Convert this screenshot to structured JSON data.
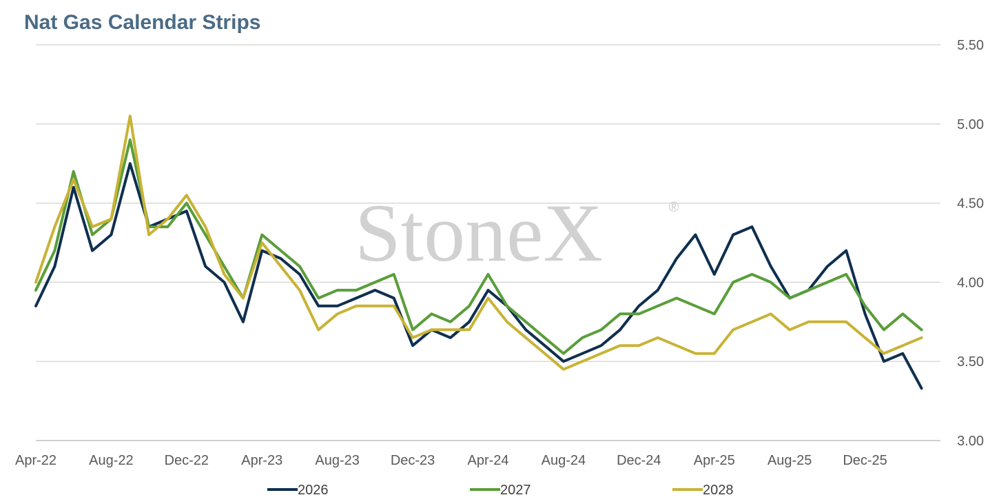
{
  "title": "Nat Gas Calendar Strips",
  "watermark": {
    "text": "StoneX",
    "mark": "®"
  },
  "colors": {
    "2026": "#0f2f4f",
    "2027": "#5a9e3a",
    "2028": "#c8b336",
    "grid": "#d9d9d9",
    "axis": "#bfbfbf"
  },
  "chart_data": {
    "type": "line",
    "title": "Nat Gas Calendar Strips",
    "xlabel": "",
    "ylabel": "",
    "ylim": [
      3.0,
      5.5
    ],
    "y_ticks": [
      "3.00",
      "3.50",
      "4.00",
      "4.50",
      "5.00",
      "5.50"
    ],
    "y_axis_side": "right",
    "grid": true,
    "legend": "bottom",
    "x_range": [
      "2022-04",
      "2026-04"
    ],
    "x_ticks": [
      "Apr-22",
      "Aug-22",
      "Dec-22",
      "Apr-23",
      "Aug-23",
      "Dec-23",
      "Apr-24",
      "Aug-24",
      "Dec-24",
      "Apr-25",
      "Aug-25",
      "Dec-25"
    ],
    "x": [
      "2022-04",
      "2022-05",
      "2022-06",
      "2022-07",
      "2022-08",
      "2022-09",
      "2022-10",
      "2022-11",
      "2022-12",
      "2023-01",
      "2023-02",
      "2023-03",
      "2023-04",
      "2023-05",
      "2023-06",
      "2023-07",
      "2023-08",
      "2023-09",
      "2023-10",
      "2023-11",
      "2023-12",
      "2024-01",
      "2024-02",
      "2024-03",
      "2024-04",
      "2024-05",
      "2024-06",
      "2024-07",
      "2024-08",
      "2024-09",
      "2024-10",
      "2024-11",
      "2024-12",
      "2025-01",
      "2025-02",
      "2025-03",
      "2025-04",
      "2025-05",
      "2025-06",
      "2025-07",
      "2025-08",
      "2025-09",
      "2025-10",
      "2025-11",
      "2025-12",
      "2026-01",
      "2026-02",
      "2026-03"
    ],
    "series": [
      {
        "name": "2026",
        "values": [
          3.85,
          4.1,
          4.6,
          4.2,
          4.3,
          4.75,
          4.35,
          4.4,
          4.45,
          4.1,
          4.0,
          3.75,
          4.2,
          4.15,
          4.05,
          3.85,
          3.85,
          3.9,
          3.95,
          3.9,
          3.6,
          3.7,
          3.65,
          3.75,
          3.95,
          3.85,
          3.7,
          3.6,
          3.5,
          3.55,
          3.6,
          3.7,
          3.85,
          3.95,
          4.15,
          4.3,
          4.05,
          4.3,
          4.35,
          4.1,
          3.9,
          3.95,
          4.1,
          4.2,
          3.8,
          3.5,
          3.55,
          3.33
        ]
      },
      {
        "name": "2027",
        "values": [
          3.95,
          4.2,
          4.7,
          4.3,
          4.4,
          4.9,
          4.35,
          4.35,
          4.5,
          4.3,
          4.1,
          3.9,
          4.3,
          4.2,
          4.1,
          3.9,
          3.95,
          3.95,
          4.0,
          4.05,
          3.7,
          3.8,
          3.75,
          3.85,
          4.05,
          3.85,
          3.75,
          3.65,
          3.55,
          3.65,
          3.7,
          3.8,
          3.8,
          3.85,
          3.9,
          3.85,
          3.8,
          4.0,
          4.05,
          4.0,
          3.9,
          3.95,
          4.0,
          4.05,
          3.85,
          3.7,
          3.8,
          3.7
        ]
      },
      {
        "name": "2028",
        "values": [
          4.0,
          4.35,
          4.65,
          4.35,
          4.4,
          5.05,
          4.3,
          4.4,
          4.55,
          4.35,
          4.05,
          3.9,
          4.25,
          4.1,
          3.95,
          3.7,
          3.8,
          3.85,
          3.85,
          3.85,
          3.65,
          3.7,
          3.7,
          3.7,
          3.9,
          3.75,
          3.65,
          3.55,
          3.45,
          3.5,
          3.55,
          3.6,
          3.6,
          3.65,
          3.6,
          3.55,
          3.55,
          3.7,
          3.75,
          3.8,
          3.7,
          3.75,
          3.75,
          3.75,
          3.65,
          3.55,
          3.6,
          3.65
        ]
      }
    ]
  }
}
